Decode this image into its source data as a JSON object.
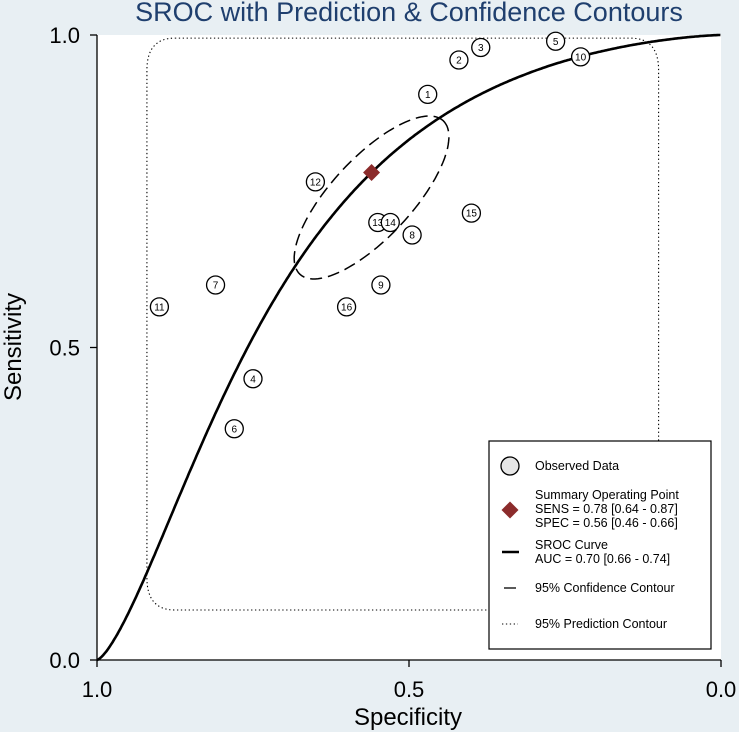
{
  "chart_data": {
    "type": "scatter",
    "title": "SROC with Prediction & Confidence Contours",
    "xlabel": "Specificity",
    "ylabel": "Sensitivity",
    "xlim": [
      1.0,
      0.0
    ],
    "ylim": [
      0.0,
      1.0
    ],
    "x_ticks": [
      "1.0",
      "0.5",
      "0.0"
    ],
    "y_ticks": [
      "0.0",
      "0.5",
      "1.0"
    ],
    "studies": [
      {
        "label": "1",
        "specificity": 0.47,
        "sensitivity": 0.905
      },
      {
        "label": "2",
        "specificity": 0.42,
        "sensitivity": 0.96
      },
      {
        "label": "3",
        "specificity": 0.385,
        "sensitivity": 0.98
      },
      {
        "label": "4",
        "specificity": 0.75,
        "sensitivity": 0.45
      },
      {
        "label": "5",
        "specificity": 0.265,
        "sensitivity": 0.99
      },
      {
        "label": "6",
        "specificity": 0.78,
        "sensitivity": 0.37
      },
      {
        "label": "7",
        "specificity": 0.81,
        "sensitivity": 0.6
      },
      {
        "label": "8",
        "specificity": 0.495,
        "sensitivity": 0.68
      },
      {
        "label": "9",
        "specificity": 0.545,
        "sensitivity": 0.6
      },
      {
        "label": "10",
        "specificity": 0.225,
        "sensitivity": 0.965
      },
      {
        "label": "11",
        "specificity": 0.9,
        "sensitivity": 0.565
      },
      {
        "label": "12",
        "specificity": 0.65,
        "sensitivity": 0.765
      },
      {
        "label": "13",
        "specificity": 0.55,
        "sensitivity": 0.7
      },
      {
        "label": "14",
        "specificity": 0.53,
        "sensitivity": 0.7
      },
      {
        "label": "15",
        "specificity": 0.4,
        "sensitivity": 0.715
      },
      {
        "label": "16",
        "specificity": 0.6,
        "sensitivity": 0.565
      }
    ],
    "summary_point": {
      "specificity": 0.56,
      "sensitivity": 0.78
    },
    "sroc_auc": 0.7,
    "legend": {
      "position": "bottom-right",
      "observed": "Observed Data",
      "summary_title": "Summary Operating Point",
      "summary_sens": "SENS = 0.78 [0.64 - 0.87]",
      "summary_spec": "SPEC = 0.56 [0.46 - 0.66]",
      "sroc_title": "SROC Curve",
      "sroc_auc": "AUC = 0.70 [0.66 - 0.74]",
      "confidence": "95% Confidence Contour",
      "prediction": "95% Prediction Contour"
    },
    "colors": {
      "background": "#e8eff3",
      "plot_bg": "#ffffff",
      "title": "#1f3f6e",
      "summary": "#8b2b2b",
      "observed_fill": "#e6e6e6"
    }
  }
}
